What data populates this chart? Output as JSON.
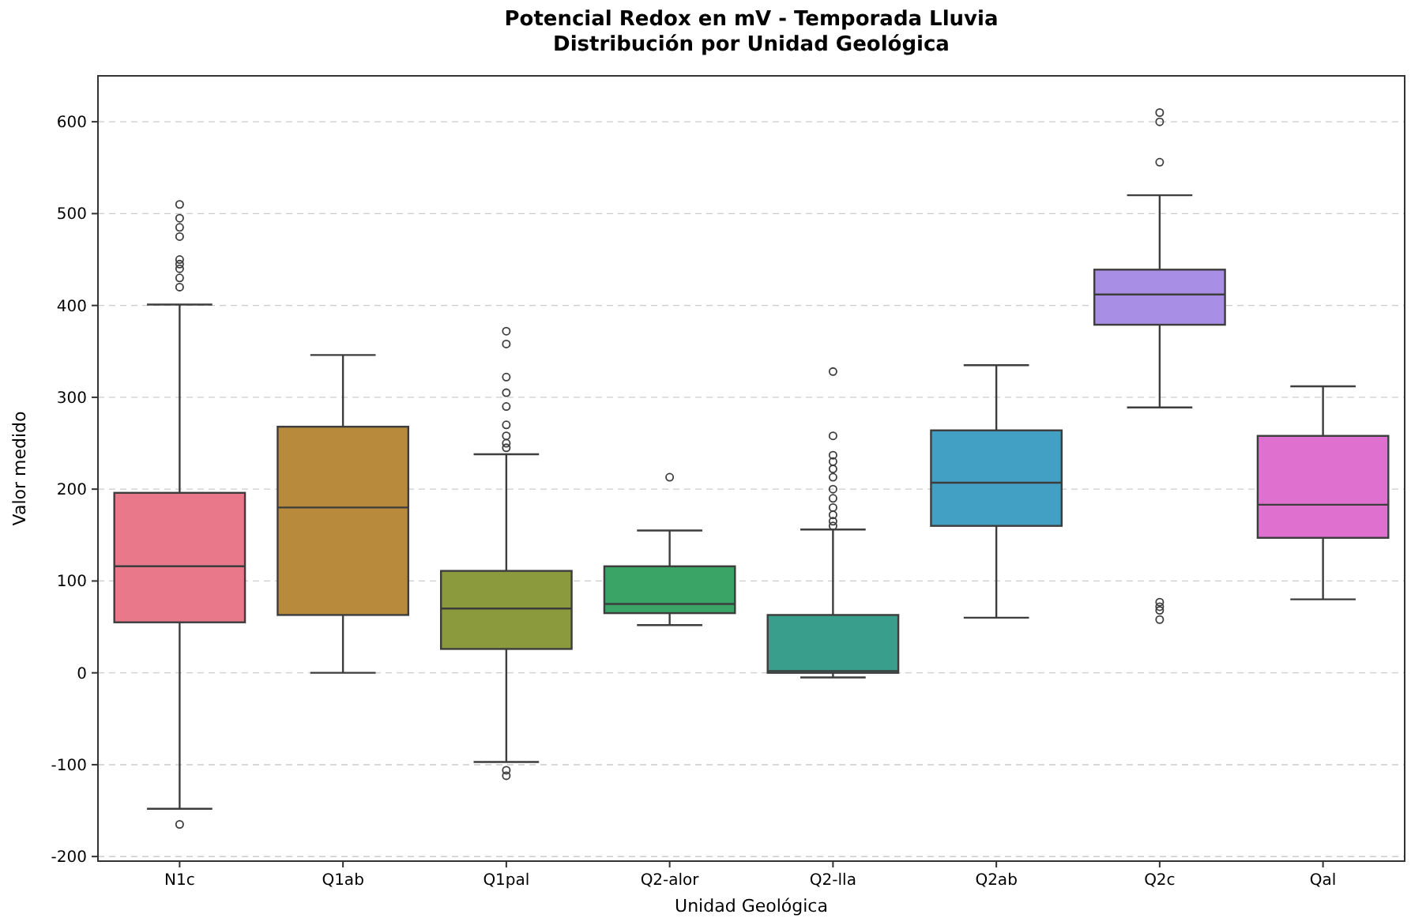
{
  "chart_data": {
    "type": "box",
    "title": "Potencial Redox en mV - Temporada Lluvia\nDistribución por Unidad Geológica",
    "xlabel": "Unidad Geológica",
    "ylabel": "Valor medido",
    "categories": [
      "N1c",
      "Q1ab",
      "Q1pal",
      "Q2-alor",
      "Q2-lla",
      "Q2ab",
      "Q2c",
      "Qal"
    ],
    "colors": [
      "#e8788a",
      "#b88a3c",
      "#8a9a3c",
      "#3aa366",
      "#3a9e8d",
      "#41a0c4",
      "#a98ee6",
      "#e070cf"
    ],
    "boxes": [
      {
        "low": -148,
        "q1": 55,
        "median": 116,
        "q3": 196,
        "high": 401,
        "outliers": [
          510,
          495,
          485,
          475,
          450,
          445,
          440,
          430,
          420,
          -165
        ]
      },
      {
        "low": 0,
        "q1": 63,
        "median": 180,
        "q3": 268,
        "high": 346
      },
      {
        "low": -97,
        "q1": 26,
        "median": 70,
        "q3": 111,
        "high": 238,
        "outliers": [
          372,
          358,
          322,
          305,
          290,
          270,
          258,
          250,
          245,
          -106,
          -112
        ]
      },
      {
        "low": 52,
        "q1": 65,
        "median": 75,
        "q3": 116,
        "high": 155,
        "outliers": [
          213
        ]
      },
      {
        "low": -5,
        "q1": 0,
        "median": 2,
        "q3": 63,
        "high": 156,
        "outliers": [
          328,
          258,
          237,
          230,
          222,
          213,
          200,
          190,
          180,
          172,
          165,
          160
        ]
      },
      {
        "low": 60,
        "q1": 160,
        "median": 207,
        "q3": 264,
        "high": 335
      },
      {
        "low": 289,
        "q1": 379,
        "median": 412,
        "q3": 439,
        "high": 520,
        "outliers": [
          610,
          600,
          556,
          77,
          72,
          68,
          58
        ]
      },
      {
        "low": 80,
        "q1": 147,
        "median": 183,
        "q3": 258,
        "high": 312
      }
    ],
    "ylim": [
      -205,
      650
    ],
    "yticks": [
      -200,
      -100,
      0,
      100,
      200,
      300,
      400,
      500,
      600
    ],
    "grid": "y"
  }
}
